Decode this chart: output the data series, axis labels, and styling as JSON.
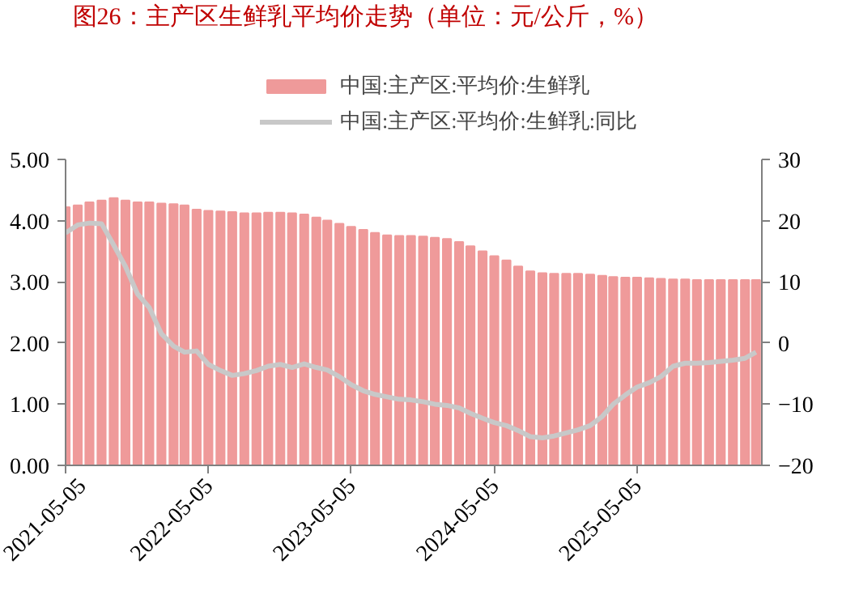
{
  "chart_data": {
    "type": "bar",
    "title": "图26：主产区生鲜乳平均价走势（单位：元/公斤，%）",
    "x": [
      "2021-05-05",
      "2021-06-05",
      "2021-07-05",
      "2021-08-05",
      "2021-09-05",
      "2021-10-05",
      "2021-11-05",
      "2021-12-05",
      "2022-01-05",
      "2022-02-05",
      "2022-03-05",
      "2022-04-05",
      "2022-05-05",
      "2022-06-05",
      "2022-07-05",
      "2022-08-05",
      "2022-09-05",
      "2022-10-05",
      "2022-11-05",
      "2022-12-05",
      "2023-01-05",
      "2023-02-05",
      "2023-03-05",
      "2023-04-05",
      "2023-05-05",
      "2023-06-05",
      "2023-07-05",
      "2023-08-05",
      "2023-09-05",
      "2023-10-05",
      "2023-11-05",
      "2023-12-05",
      "2024-01-05",
      "2024-02-05",
      "2024-03-05",
      "2024-04-05",
      "2024-05-05",
      "2024-06-05",
      "2024-07-05",
      "2024-08-05",
      "2024-09-05",
      "2024-10-05",
      "2024-11-05",
      "2024-12-05",
      "2025-01-05",
      "2025-02-05",
      "2025-03-05",
      "2025-04-05",
      "2025-05-05",
      "2025-06-05",
      "2025-07-05",
      "2025-08-05",
      "2025-09-05",
      "2025-10-05",
      "2025-11-05",
      "2025-12-05",
      "2026-01-05",
      "2026-02-05",
      "2026-03-05"
    ],
    "series": [
      {
        "name": "中国:主产区:平均价:生鲜乳",
        "color": "#ef9a9a",
        "values": [
          4.22,
          4.25,
          4.3,
          4.33,
          4.37,
          4.33,
          4.3,
          4.3,
          4.28,
          4.27,
          4.25,
          4.18,
          4.16,
          4.15,
          4.14,
          4.12,
          4.12,
          4.13,
          4.13,
          4.12,
          4.1,
          4.05,
          4.0,
          3.95,
          3.9,
          3.85,
          3.8,
          3.76,
          3.75,
          3.75,
          3.74,
          3.72,
          3.7,
          3.65,
          3.58,
          3.5,
          3.42,
          3.35,
          3.25,
          3.17,
          3.14,
          3.13,
          3.13,
          3.13,
          3.12,
          3.1,
          3.08,
          3.07,
          3.07,
          3.06,
          3.05,
          3.04,
          3.04,
          3.03,
          3.03,
          3.03,
          3.03,
          3.03,
          3.03
        ]
      },
      {
        "name": "中国:主产区:平均价:生鲜乳:同比",
        "type": "line",
        "axis": "y2",
        "color": "#c8c8c8",
        "values": [
          18,
          19.3,
          19.6,
          19.5,
          16,
          12.5,
          8,
          5.8,
          1.5,
          -0.5,
          -1.5,
          -1.3,
          -3.5,
          -4.5,
          -5.3,
          -5,
          -4.5,
          -3.8,
          -3.5,
          -4,
          -3.4,
          -4,
          -4.4,
          -5.5,
          -6.8,
          -7.8,
          -8.4,
          -8.8,
          -9.2,
          -9.3,
          -9.6,
          -10,
          -10.2,
          -10.6,
          -11.5,
          -12.3,
          -13,
          -13.5,
          -14.3,
          -15.3,
          -15.5,
          -15.2,
          -14.7,
          -14.2,
          -13.5,
          -12,
          -10,
          -8.5,
          -7.2,
          -6.5,
          -5.5,
          -3.8,
          -3.3,
          -3.3,
          -3.2,
          -3,
          -2.8,
          -2.5,
          -1.5
        ]
      }
    ],
    "xlim": [
      "2021-05-05",
      "2026-03-20"
    ],
    "xticks": [
      "2021-05-05",
      "2022-05-05",
      "2023-05-05",
      "2024-05-05",
      "2025-05-05"
    ],
    "ylim": [
      0,
      5
    ],
    "yticks": [
      {
        "value": 0,
        "label": "0.00"
      },
      {
        "value": 1,
        "label": "1.00"
      },
      {
        "value": 2,
        "label": "2.00"
      },
      {
        "value": 3,
        "label": "3.00"
      },
      {
        "value": 4,
        "label": "4.00"
      },
      {
        "value": 5,
        "label": "5.00"
      }
    ],
    "y2lim": [
      -20,
      30
    ],
    "y2ticks": [
      -20,
      -10,
      0,
      10,
      20,
      30
    ],
    "legend": "top",
    "grid": false
  }
}
